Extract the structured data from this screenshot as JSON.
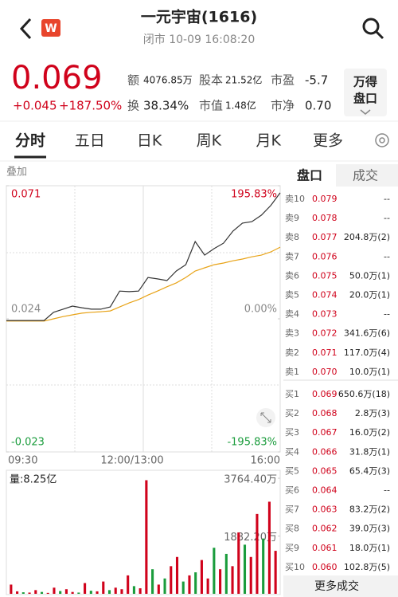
{
  "header": {
    "badge": "W",
    "title": "一元宇宙(1616)",
    "status": "闭市 10-09 16:08:20"
  },
  "quote": {
    "price": "0.069",
    "change": "+0.045",
    "change_pct": "+187.50%",
    "stats": [
      {
        "label": "额",
        "value": "4076.85万"
      },
      {
        "label": "股本",
        "value": "21.52亿"
      },
      {
        "label": "市盈",
        "value": "-5.7"
      },
      {
        "label": "换",
        "value": "38.34%"
      },
      {
        "label": "市值",
        "value": "1.48亿"
      },
      {
        "label": "市净",
        "value": "0.70"
      }
    ],
    "button": [
      "万得",
      "盘口"
    ]
  },
  "tabs": [
    "分时",
    "五日",
    "日K",
    "周K",
    "月K",
    "更多"
  ],
  "chart": {
    "overlay": "叠加",
    "price_ticks": [
      0.071,
      0.024,
      -0.023
    ],
    "pct_ticks": [
      {
        "value": 195.83,
        "label": "195.83%"
      },
      {
        "value": 0,
        "label": "0.00%"
      },
      {
        "value": -195.83,
        "label": "-195.83%"
      }
    ],
    "time_labels": [
      "09:30",
      "12:00/13:00",
      "16:00"
    ],
    "price": [
      0.0234,
      0.0234,
      0.0234,
      0.0234,
      0.0234,
      0.0263,
      0.0274,
      0.0285,
      0.0279,
      0.0274,
      0.0274,
      0.0282,
      0.0338,
      0.0336,
      0.0338,
      0.0386,
      0.0381,
      0.0375,
      0.0409,
      0.0431,
      0.0513,
      0.0465,
      0.0488,
      0.0507,
      0.055,
      0.0578,
      0.0583,
      0.0606,
      0.064,
      0.0685
    ],
    "average": [
      0.0232,
      0.0232,
      0.0232,
      0.0232,
      0.0232,
      0.024,
      0.0248,
      0.0254,
      0.026,
      0.0263,
      0.0265,
      0.0268,
      0.0282,
      0.0296,
      0.0308,
      0.0324,
      0.0338,
      0.0353,
      0.0367,
      0.0386,
      0.0409,
      0.042,
      0.0431,
      0.0437,
      0.0445,
      0.0451,
      0.0459,
      0.0465,
      0.0476,
      0.0493
    ],
    "volume_label": "量:8.25亿",
    "volume_ticks": [
      {
        "value": 3764.4,
        "label": "3764.40万"
      },
      {
        "value": 1882.2,
        "label": "1882.20万"
      }
    ],
    "volume": [
      300,
      80,
      50,
      40,
      120,
      60,
      30,
      200,
      90,
      150,
      60,
      40,
      350,
      100,
      80,
      400,
      120,
      200,
      150,
      600,
      250,
      180,
      3700,
      800,
      300,
      500,
      900,
      1200,
      400,
      600,
      700,
      1100,
      500,
      1500,
      800,
      1300,
      900,
      2000,
      1600,
      1200,
      2600,
      1800,
      3000,
      1400
    ],
    "volume_colors": [
      "#d0021b",
      "#d0021b",
      "#1a9c3c",
      "#d0021b",
      "#d0021b",
      "#1a9c3c",
      "#d0021b",
      "#d0021b",
      "#1a9c3c",
      "#d0021b",
      "#d0021b",
      "#1a9c3c",
      "#d0021b",
      "#1a9c3c",
      "#d0021b",
      "#d0021b",
      "#1a9c3c",
      "#d0021b",
      "#d0021b",
      "#d0021b",
      "#1a9c3c",
      "#d0021b",
      "#d0021b",
      "#1a9c3c",
      "#d0021b",
      "#1a9c3c",
      "#d0021b",
      "#d0021b",
      "#1a9c3c",
      "#d0021b",
      "#1a9c3c",
      "#d0021b",
      "#d0021b",
      "#1a9c3c",
      "#d0021b",
      "#1a9c3c",
      "#d0021b",
      "#d0021b",
      "#1a9c3c",
      "#d0021b",
      "#d0021b",
      "#1a9c3c",
      "#d0021b",
      "#d0021b"
    ]
  },
  "orderbook": {
    "tabs": [
      "盘口",
      "成交"
    ],
    "rows": [
      [
        "卖10",
        "0.079",
        "--"
      ],
      [
        "卖9",
        "0.078",
        "--"
      ],
      [
        "卖8",
        "0.077",
        "204.8万(2)"
      ],
      [
        "卖7",
        "0.076",
        "--"
      ],
      [
        "卖6",
        "0.075",
        "50.0万(1)"
      ],
      [
        "卖5",
        "0.074",
        "20.0万(1)"
      ],
      [
        "卖4",
        "0.073",
        "--"
      ],
      [
        "卖3",
        "0.072",
        "341.6万(6)"
      ],
      [
        "卖2",
        "0.071",
        "117.0万(4)"
      ],
      [
        "卖1",
        "0.070",
        "10.0万(1)"
      ],
      [
        "买1",
        "0.069",
        "650.6万(18)"
      ],
      [
        "买2",
        "0.068",
        "2.8万(3)"
      ],
      [
        "买3",
        "0.067",
        "16.0万(2)"
      ],
      [
        "买4",
        "0.066",
        "31.8万(1)"
      ],
      [
        "买5",
        "0.065",
        "65.4万(3)"
      ],
      [
        "买6",
        "0.064",
        "--"
      ],
      [
        "买7",
        "0.063",
        "83.2万(2)"
      ],
      [
        "买8",
        "0.062",
        "39.0万(3)"
      ],
      [
        "买9",
        "0.061",
        "18.0万(1)"
      ],
      [
        "买10",
        "0.060",
        "102.8万(5)"
      ]
    ],
    "footer": "更多成交"
  }
}
